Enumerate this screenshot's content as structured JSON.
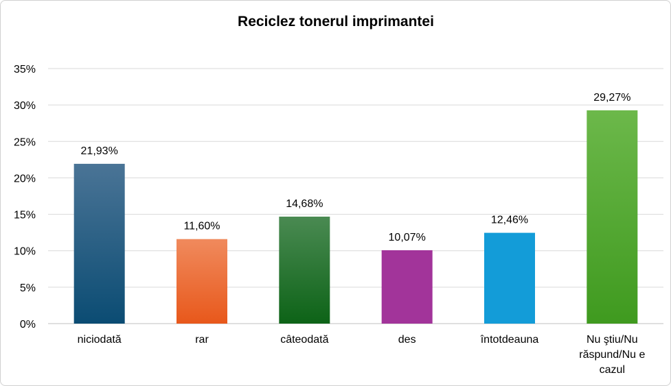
{
  "chart_data": {
    "type": "bar",
    "title": "Reciclez tonerul imprimantei",
    "xlabel": "",
    "ylabel": "",
    "ylim": [
      0,
      35
    ],
    "yticks": [
      "0%",
      "5%",
      "10%",
      "15%",
      "20%",
      "25%",
      "30%",
      "35%"
    ],
    "grid": true,
    "legend": "none",
    "categories": [
      [
        "niciodată"
      ],
      [
        "rar"
      ],
      [
        "câteodată"
      ],
      [
        "des"
      ],
      [
        "întotdeauna"
      ],
      [
        "Nu ştiu/Nu",
        "răspund/Nu e",
        "cazul"
      ]
    ],
    "values": [
      21.93,
      11.6,
      14.68,
      10.07,
      12.46,
      29.27
    ],
    "data_labels": [
      "21,93%",
      "11,60%",
      "14,68%",
      "10,07%",
      "12,46%",
      "29,27%"
    ],
    "colors": [
      [
        "#4a7496",
        "#0b4c73"
      ],
      [
        "#f08a5d",
        "#e8581b"
      ],
      [
        "#4a8a52",
        "#0d6317"
      ],
      [
        "#a2349a",
        "#a2349a"
      ],
      [
        "#139cd8",
        "#139cd8"
      ],
      [
        "#6cb84a",
        "#3f9a1f"
      ]
    ]
  }
}
